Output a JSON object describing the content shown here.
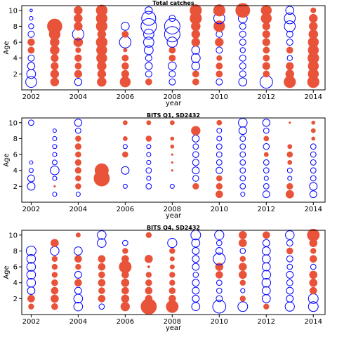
{
  "chart_data": [
    {
      "type": "scatter",
      "title": "Total catches",
      "xlabel": "year",
      "ylabel": "Age",
      "xlim": [
        2001.6,
        2014.5
      ],
      "ylim": [
        0,
        10.6
      ],
      "xticks": [
        2002,
        2004,
        2006,
        2008,
        2010,
        2012,
        2014
      ],
      "yticks": [
        2,
        4,
        6,
        8,
        10
      ],
      "bubble_encoding": "radius proportional to sqrt(|residual|); filled red = positive, open blue = negative",
      "colors": {
        "positive": "#e8533a",
        "negative": "#0000ff"
      },
      "years": [
        2002,
        2003,
        2004,
        2005,
        2006,
        2007,
        2008,
        2009,
        2010,
        2011,
        2012,
        2013,
        2014
      ],
      "ages": [
        1,
        2,
        3,
        4,
        5,
        6,
        7,
        8,
        9,
        10
      ],
      "residuals": [
        [
          -0.9,
          -0.6,
          -0.4,
          -0.3,
          0.3,
          0.35,
          -0.3,
          -0.2,
          -0.1,
          -0.05
        ],
        [
          0.5,
          0.5,
          0.4,
          0.4,
          0.6,
          0.6,
          0.9,
          1.6,
          0.0,
          0.0
        ],
        [
          -0.4,
          0.4,
          0.3,
          0.35,
          0.2,
          0.6,
          -1.0,
          0.5,
          0.5,
          0.5
        ],
        [
          0.6,
          0.5,
          0.6,
          0.8,
          0.8,
          0.9,
          0.5,
          0.9,
          0.9,
          0.9
        ],
        [
          0.8,
          0.4,
          0.35,
          0.3,
          0.1,
          -1.0,
          0.3,
          -0.5,
          0.0,
          0.0
        ],
        [
          0.3,
          -0.3,
          -0.4,
          -0.3,
          -0.6,
          -0.8,
          -0.8,
          -1.8,
          -1.5,
          -0.4
        ],
        [
          -0.3,
          -0.3,
          -0.5,
          0.3,
          0.3,
          -0.8,
          -1.8,
          -1.8,
          -0.3,
          0.0
        ],
        [
          0.3,
          0.3,
          -0.5,
          -0.6,
          -0.5,
          0.5,
          0.5,
          0.6,
          1.0,
          1.0
        ],
        [
          -0.3,
          0.3,
          0.3,
          0.2,
          -0.3,
          0.5,
          -0.3,
          0.9,
          -0.9,
          1.0
        ],
        [
          -0.5,
          -0.3,
          -0.3,
          -0.3,
          -0.2,
          -0.3,
          -0.3,
          -0.3,
          -0.6,
          1.5
        ],
        [
          -1.2,
          0.3,
          0.4,
          0.3,
          0.3,
          0.4,
          0.4,
          0.4,
          0.8,
          0.8
        ],
        [
          1.0,
          0.5,
          0.4,
          -0.2,
          0.3,
          -0.3,
          -0.3,
          -0.9,
          -0.9,
          -0.5
        ],
        [
          1.0,
          0.8,
          0.8,
          0.9,
          0.8,
          0.8,
          0.6,
          0.5,
          0.5,
          0.2
        ]
      ]
    },
    {
      "type": "scatter",
      "title": "BITS Q1, SD2432",
      "xlabel": "year",
      "ylabel": "Age",
      "xlim": [
        2001.6,
        2014.5
      ],
      "ylim": [
        0,
        10.6
      ],
      "xticks": [
        2002,
        2004,
        2006,
        2008,
        2010,
        2012,
        2014
      ],
      "yticks": [
        2,
        4,
        6,
        8,
        10
      ],
      "bubble_encoding": "radius proportional to sqrt(|residual|); filled red = positive, open blue = negative",
      "colors": {
        "positive": "#e8533a",
        "negative": "#0000ff"
      },
      "years": [
        2002,
        2003,
        2004,
        2005,
        2006,
        2007,
        2008,
        2009,
        2010,
        2011,
        2012,
        2013,
        2014
      ],
      "ages": [
        1,
        2,
        3,
        4,
        5,
        6,
        7,
        8,
        9,
        10
      ],
      "residuals": [
        [
          0.0,
          -1.0,
          -0.8,
          -0.3,
          -0.2,
          0.0,
          0.0,
          0.0,
          0.0,
          -0.5
        ],
        [
          -0.3,
          0.05,
          -0.3,
          -1.3,
          -0.4,
          -0.3,
          -0.3,
          -0.3,
          -0.2,
          0.0
        ],
        [
          -0.3,
          0.5,
          0.5,
          0.6,
          0.6,
          0.5,
          0.6,
          0.5,
          -0.5,
          -0.9
        ],
        [
          0.0,
          0.0,
          4.0,
          3.0,
          0.0,
          0.0,
          0.0,
          0.0,
          0.0,
          0.0
        ],
        [
          0.0,
          -0.3,
          0.0,
          -1.0,
          0.0,
          0.5,
          -0.3,
          0.3,
          0.0,
          0.3
        ],
        [
          0.0,
          -0.5,
          -0.3,
          -0.5,
          -0.3,
          -0.3,
          -0.3,
          0.5,
          0.0,
          0.3
        ],
        [
          0.0,
          -0.3,
          0.0,
          0.05,
          0.05,
          0.05,
          0.2,
          0.2,
          0.0,
          0.3
        ],
        [
          0.0,
          0.6,
          -0.6,
          -0.8,
          -0.7,
          -0.6,
          -0.5,
          -0.8,
          1.3,
          0.0
        ],
        [
          0.8,
          0.6,
          0.5,
          -0.7,
          -0.5,
          -0.5,
          -0.5,
          -0.4,
          -0.4,
          0.4
        ],
        [
          -0.3,
          -0.5,
          -0.5,
          -0.5,
          -0.5,
          -0.5,
          -0.5,
          -0.5,
          -1.0,
          -1.3
        ],
        [
          -0.8,
          -0.5,
          -0.3,
          -0.5,
          -0.5,
          0.3,
          -0.6,
          0.4,
          -0.5,
          -0.9
        ],
        [
          1.0,
          0.6,
          -0.3,
          -0.4,
          0.3,
          0.5,
          0.3,
          0.0,
          0.0,
          0.05
        ],
        [
          -0.8,
          -1.0,
          -0.5,
          -0.5,
          -0.5,
          -0.5,
          -0.5,
          0.2,
          0.3,
          0.2
        ]
      ]
    },
    {
      "type": "scatter",
      "title": "BITS Q4, SD2432",
      "xlabel": "year",
      "ylabel": "Age",
      "xlim": [
        2001.6,
        2014.5
      ],
      "ylim": [
        0,
        10.6
      ],
      "xticks": [
        2002,
        2004,
        2006,
        2008,
        2010,
        2012,
        2014
      ],
      "yticks": [
        2,
        4,
        6,
        8,
        10
      ],
      "bubble_encoding": "radius proportional to sqrt(|residual|); filled red = positive, open blue = negative",
      "colors": {
        "positive": "#e8533a",
        "negative": "#0000ff"
      },
      "years": [
        2002,
        2003,
        2004,
        2005,
        2006,
        2007,
        2008,
        2009,
        2010,
        2011,
        2012,
        2013,
        2014
      ],
      "ages": [
        1,
        2,
        3,
        4,
        5,
        6,
        7,
        8,
        9,
        10
      ],
      "residuals": [
        [
          0.3,
          0.5,
          -0.6,
          -0.8,
          -0.8,
          -0.8,
          -0.8,
          -1.0,
          0.0,
          0.0
        ],
        [
          0.4,
          0.6,
          0.5,
          0.4,
          0.3,
          0.3,
          0.3,
          -0.8,
          0.6,
          0.0
        ],
        [
          -0.8,
          -0.8,
          -0.5,
          0.5,
          -0.5,
          0.3,
          0.5,
          -0.7,
          0.0,
          0.2
        ],
        [
          -0.3,
          0.5,
          0.4,
          0.5,
          0.4,
          0.5,
          0.5,
          0.0,
          -0.8,
          -0.8
        ],
        [
          0.8,
          0.6,
          0.5,
          0.6,
          0.5,
          1.5,
          0.5,
          0.3,
          -0.3,
          0.0
        ],
        [
          2.5,
          0.5,
          0.5,
          0.4,
          0.3,
          0.05,
          0.6,
          0.0,
          0.0,
          0.3
        ],
        [
          1.5,
          0.5,
          0.4,
          0.3,
          0.3,
          0.2,
          0.2,
          0.3,
          -0.9,
          0.0
        ],
        [
          -0.7,
          -0.5,
          -0.5,
          -0.5,
          -0.3,
          -0.5,
          -0.5,
          -0.5,
          -0.7,
          -1.0
        ],
        [
          -1.8,
          -0.4,
          -0.3,
          -0.3,
          0.5,
          0.6,
          -1.5,
          -0.5,
          -0.3,
          -0.9
        ],
        [
          -1.0,
          0.3,
          -0.2,
          0.3,
          0.6,
          0.6,
          0.3,
          -0.3,
          0.6,
          0.6
        ],
        [
          0.3,
          -0.7,
          -0.7,
          -0.8,
          -0.8,
          -0.7,
          -0.7,
          -0.7,
          -0.5,
          0.5
        ],
        [
          -0.9,
          -0.5,
          -0.5,
          -0.4,
          -0.5,
          -0.3,
          -0.4,
          0.4,
          -0.4,
          -0.8
        ],
        [
          -1.0,
          -1.0,
          0.5,
          0.6,
          0.6,
          -0.3,
          0.5,
          0.3,
          0.6,
          1.5
        ]
      ]
    }
  ]
}
